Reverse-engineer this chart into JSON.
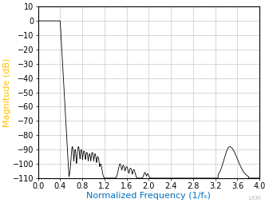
{
  "title": "",
  "xlabel": "Normalized Frequency (1/fₛ)",
  "ylabel": "Magnitude (dB)",
  "xlim": [
    0,
    4
  ],
  "ylim": [
    -110,
    10
  ],
  "xticks": [
    0,
    0.4,
    0.8,
    1.2,
    1.6,
    2.0,
    2.4,
    2.8,
    3.2,
    3.6,
    4.0
  ],
  "yticks": [
    10,
    0,
    -10,
    -20,
    -30,
    -40,
    -50,
    -60,
    -70,
    -80,
    -90,
    -100,
    -110
  ],
  "line_color": "#000000",
  "grid_color": "#c8c8c8",
  "bg_color": "#ffffff",
  "axis_label_color_x": "#0070c0",
  "axis_label_color_y": "#ffc000",
  "watermark": "LXXI",
  "watermark_color": "#b0b0b0",
  "font_size_ticks": 7,
  "font_size_labels": 8
}
